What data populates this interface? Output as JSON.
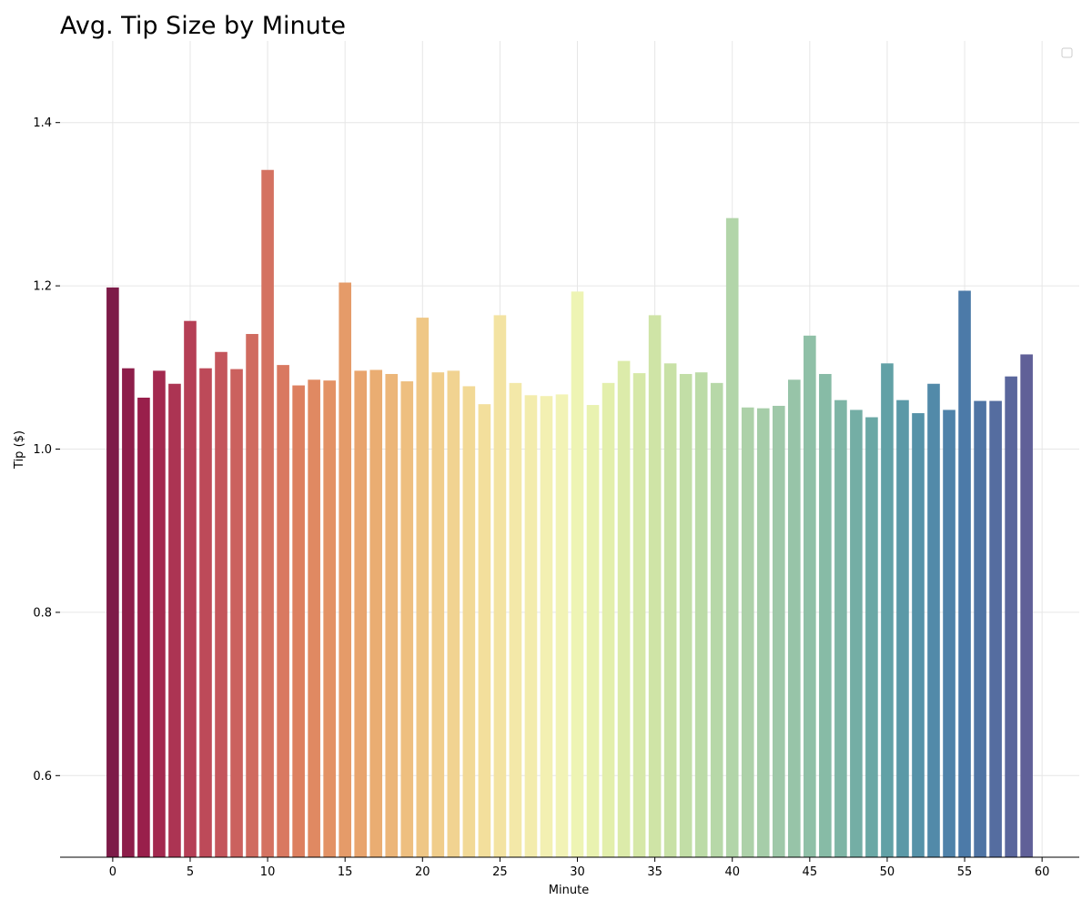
{
  "chart_data": {
    "type": "bar",
    "title": "Avg. Tip Size by Minute",
    "xlabel": "Minute",
    "ylabel": "Tip ($)",
    "xlim": [
      -3.4,
      62.4
    ],
    "ylim": [
      0.5,
      1.5
    ],
    "xticks": [
      0,
      5,
      10,
      15,
      20,
      25,
      30,
      35,
      40,
      45,
      50,
      55,
      60
    ],
    "yticks": [
      0.6,
      0.8,
      1.0,
      1.2,
      1.4
    ],
    "ytick_labels": [
      "0.6",
      "0.8",
      "1.0",
      "1.2",
      "1.4"
    ],
    "grid": true,
    "legend": "top-right",
    "colormap": "Spectral",
    "categories": [
      0,
      1,
      2,
      3,
      4,
      5,
      6,
      7,
      8,
      9,
      10,
      11,
      12,
      13,
      14,
      15,
      16,
      17,
      18,
      19,
      20,
      21,
      22,
      23,
      24,
      25,
      26,
      27,
      28,
      29,
      30,
      31,
      32,
      33,
      34,
      35,
      36,
      37,
      38,
      39,
      40,
      41,
      42,
      43,
      44,
      45,
      46,
      47,
      48,
      49,
      50,
      51,
      52,
      53,
      54,
      55,
      56,
      57,
      58,
      59
    ],
    "values": [
      1.198,
      1.099,
      1.063,
      1.096,
      1.08,
      1.157,
      1.099,
      1.119,
      1.098,
      1.141,
      1.342,
      1.103,
      1.078,
      1.085,
      1.084,
      1.204,
      1.096,
      1.097,
      1.092,
      1.083,
      1.161,
      1.094,
      1.096,
      1.077,
      1.055,
      1.164,
      1.081,
      1.066,
      1.065,
      1.067,
      1.193,
      1.054,
      1.081,
      1.108,
      1.093,
      1.164,
      1.105,
      1.092,
      1.094,
      1.081,
      1.283,
      1.051,
      1.05,
      1.053,
      1.085,
      1.139,
      1.092,
      1.06,
      1.048,
      1.039,
      1.105,
      1.06,
      1.044,
      1.08,
      1.048,
      1.194,
      1.059,
      1.059,
      1.089,
      1.116
    ],
    "colors": [
      "#7d1b48",
      "#8d1e4a",
      "#991f4b",
      "#a3294f",
      "#ac3453",
      "#b53f56",
      "#bd4a59",
      "#c4555c",
      "#cb615e",
      "#d06b60",
      "#d47261",
      "#d97961",
      "#dd8060",
      "#e08962",
      "#e39265",
      "#e59b69",
      "#e8a46d",
      "#eaad72",
      "#ecb679",
      "#eebf80",
      "#efc786",
      "#f0cd8b",
      "#f1d391",
      "#f2d996",
      "#f3df9c",
      "#f3e3a2",
      "#f3e8a8",
      "#f3ecad",
      "#f3f0b2",
      "#f2f3b6",
      "#eef4b4",
      "#e9f2b0",
      "#e3efac",
      "#dcebaa",
      "#d6e8a8",
      "#cfe4a6",
      "#c8e1a6",
      "#c2dea6",
      "#bcdba7",
      "#b7d8a8",
      "#b2d5a9",
      "#add1a9",
      "#a6cda9",
      "#9fc8a9",
      "#97c4a8",
      "#8fc0a7",
      "#87bba6",
      "#7eb5a5",
      "#74aea5",
      "#6aa8a5",
      "#62a1a6",
      "#5b99a7",
      "#5692a8",
      "#528aa9",
      "#4f82a9",
      "#4c7aa8",
      "#4f74a4",
      "#556da0",
      "#5a669c",
      "#606098"
    ]
  }
}
